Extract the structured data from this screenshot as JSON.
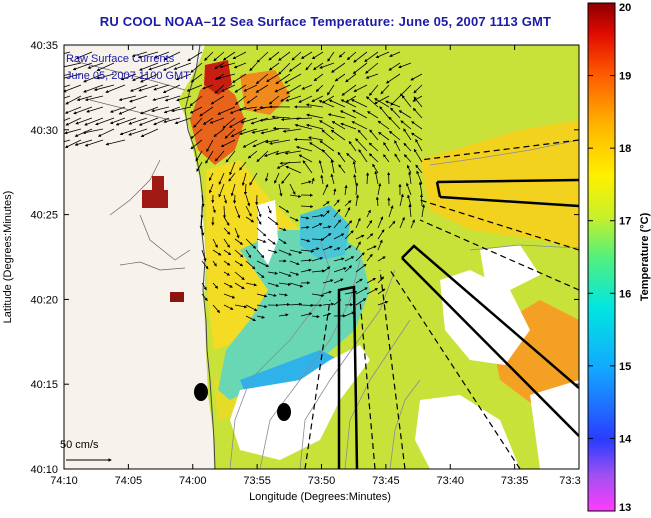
{
  "title": "RU COOL   NOAA–12  Sea Surface Temperature:  June 05, 2007 1113 GMT",
  "annotation": {
    "line1": "Raw Surface Currents",
    "line2": "June 05, 2007 1100 GMT"
  },
  "scale_label": "50 cm/s",
  "chart_data": {
    "type": "heatmap",
    "xlabel": "Longitude (Degrees:Minutes)",
    "ylabel": "Latitude (Degrees:Minutes)",
    "x_ticks": [
      "74:10",
      "74:05",
      "74:00",
      "73:55",
      "73:50",
      "73:45",
      "73:40",
      "73:35",
      "73:3"
    ],
    "y_ticks": [
      "40:35",
      "40:30",
      "40:25",
      "40:20",
      "40:15",
      "40:10"
    ],
    "colorbar": {
      "label": "Temperature (°C)",
      "ticks": [
        "20",
        "19",
        "18",
        "17",
        "16",
        "15",
        "14",
        "13"
      ],
      "range": [
        13,
        20
      ]
    },
    "colors": {
      "land": "#f7f3ec",
      "cloud": "#ffffff",
      "ocean_warm": "#fadc1e",
      "ocean_mild": "#b8e03c",
      "ocean_cool": "#5cd2c8",
      "ocean_cold": "#22aef0",
      "hot_spot": "#e8501c",
      "title": "#1c1aa8"
    }
  }
}
